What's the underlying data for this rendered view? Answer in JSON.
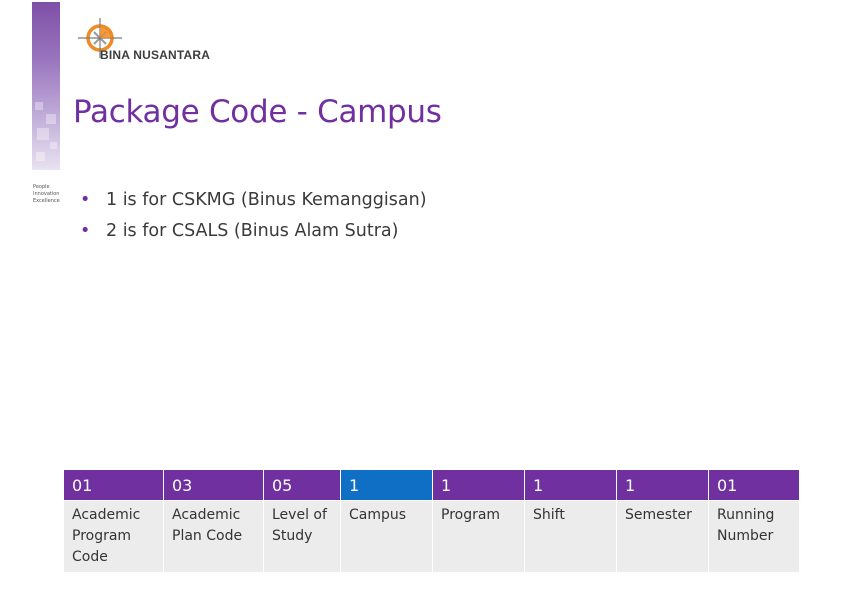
{
  "brand": {
    "logo_text": "BINA NUSANTARA",
    "tagline": [
      "People",
      "Innovation",
      "Excellence"
    ],
    "colors": {
      "purple": "#7030a0",
      "highlight_blue": "#0e6fc4",
      "orange": "#f08a24"
    }
  },
  "slide": {
    "title": "Package Code - Campus",
    "bullets": [
      "1 is for CSKMG (Binus Kemanggisan)",
      "2 is for CSALS (Binus Alam Sutra)"
    ]
  },
  "table": {
    "highlighted_column": "Campus",
    "codes": [
      "01",
      "03",
      "05",
      "1",
      "1",
      "1",
      "1",
      "01"
    ],
    "labels": [
      "Academic Program Code",
      "Academic Plan Code",
      "Level of Study",
      "Campus",
      "Program",
      "Shift",
      "Semester",
      "Running Number"
    ]
  }
}
